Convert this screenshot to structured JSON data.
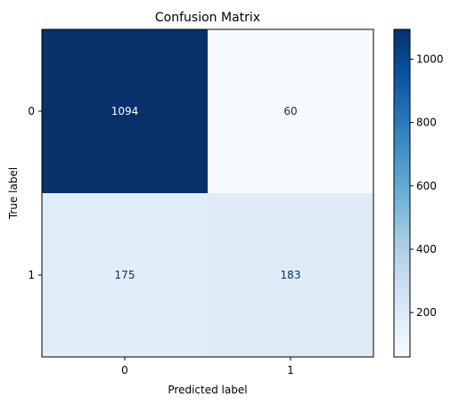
{
  "chart_data": {
    "type": "heatmap",
    "title": "Confusion Matrix",
    "xlabel": "Predicted label",
    "ylabel": "True label",
    "x_categories": [
      "0",
      "1"
    ],
    "y_categories": [
      "0",
      "1"
    ],
    "matrix": [
      [
        1094,
        60
      ],
      [
        175,
        183
      ]
    ],
    "colormap": "Blues",
    "color_range": [
      60,
      1094
    ],
    "colorbar_ticks": [
      200,
      400,
      600,
      800,
      1000
    ],
    "colorbar_tick_labels": [
      "200",
      "400",
      "600",
      "800",
      "1000"
    ],
    "cell_label_colors": {
      "dark": "#ffffff",
      "light": "#08306b"
    },
    "grid": false
  }
}
